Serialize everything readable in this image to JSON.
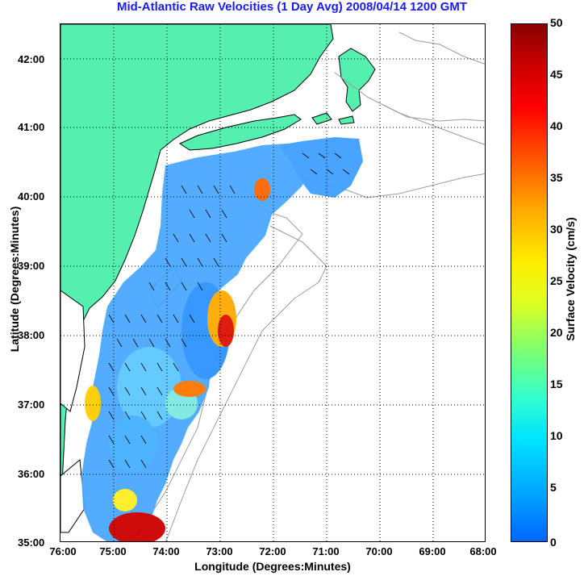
{
  "title": "Mid-Atlantic Raw Velocities (1 Day Avg) 2008/04/14 1200 GMT",
  "x_axis": {
    "label": "Longitude (Degrees:Minutes)",
    "ticks": [
      "76:00",
      "75:00",
      "74:00",
      "73:00",
      "72:00",
      "71:00",
      "70:00",
      "69:00",
      "68:00"
    ]
  },
  "y_axis": {
    "label": "Latitude (Degrees:Minutes)",
    "ticks": [
      "42:00",
      "41:00",
      "40:00",
      "39:00",
      "38:00",
      "37:00",
      "36:00",
      "35:00"
    ]
  },
  "colorbar": {
    "label": "Surface Velocity (cm/s)",
    "ticks": [
      "50",
      "45",
      "40",
      "35",
      "30",
      "25",
      "20",
      "15",
      "10",
      "5",
      "0"
    ]
  },
  "colors": {
    "title": "#1a1aff",
    "land": "#55f0b0",
    "coast": "#000000",
    "bathymetry": "#9a9a9a",
    "grid": "#000000"
  }
}
